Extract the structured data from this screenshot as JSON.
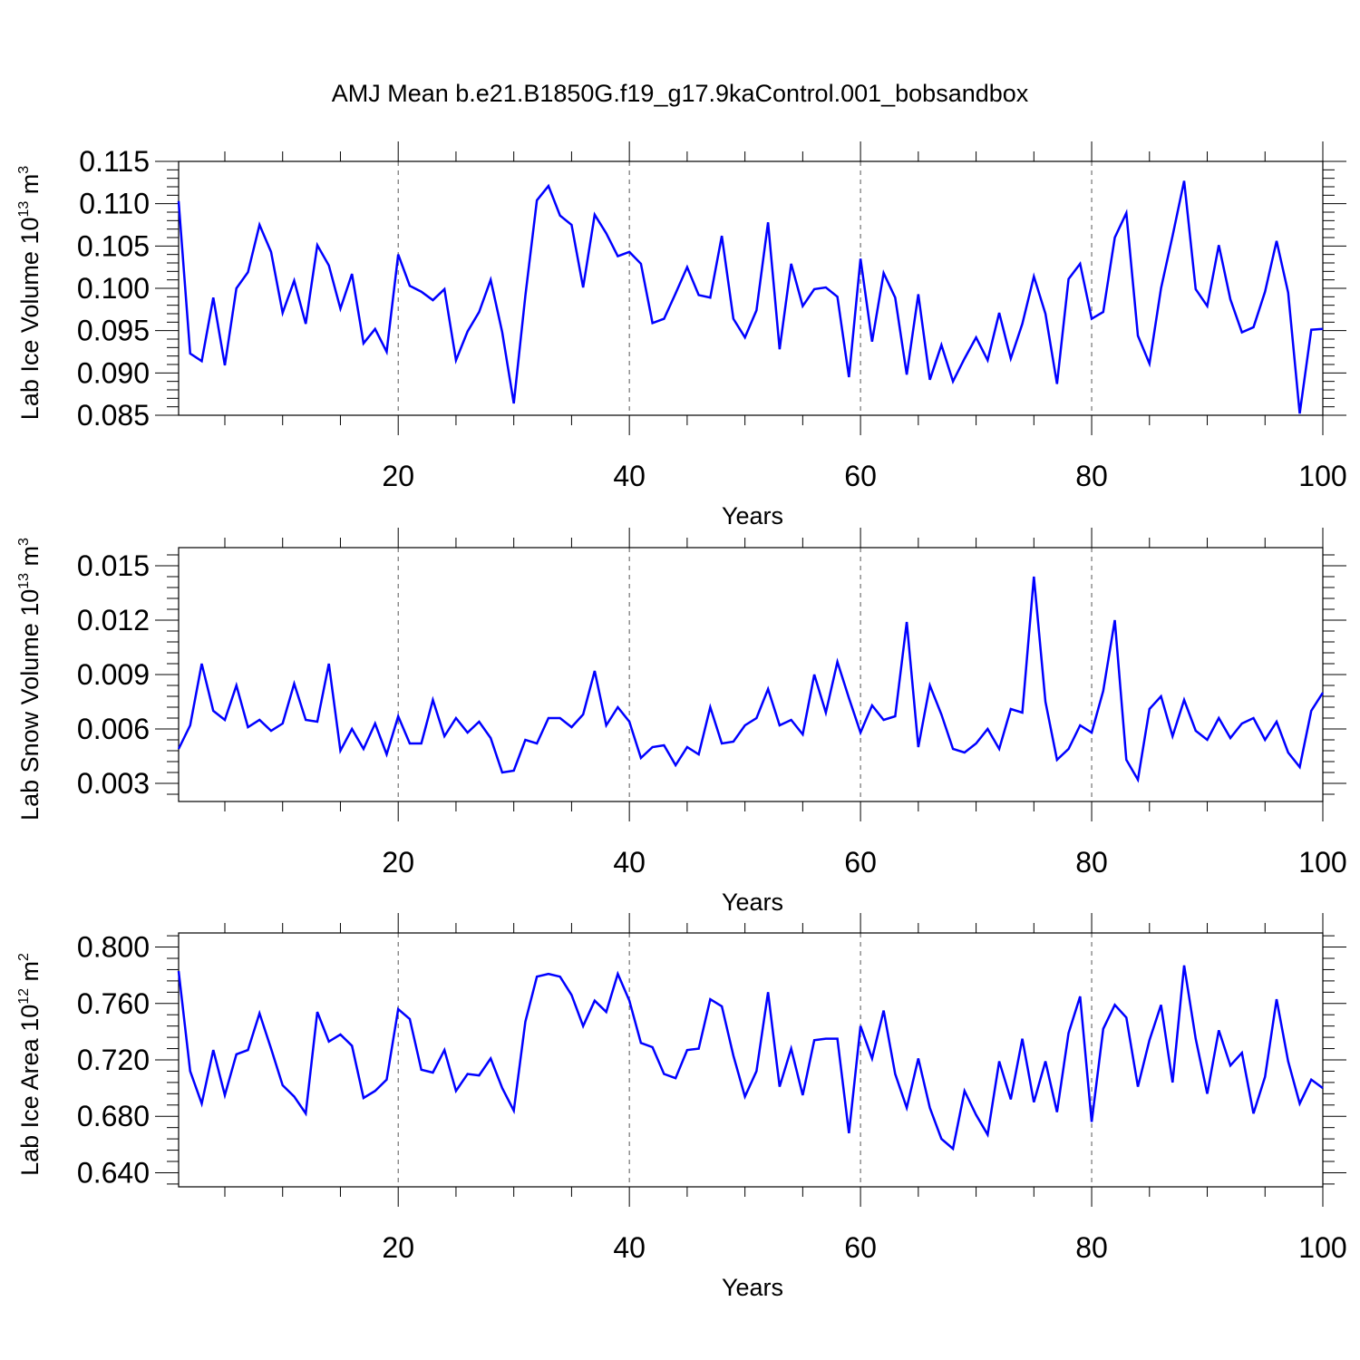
{
  "title": "AMJ Mean b.e21.B1850G.f19_g17.9kaControl.001_bobsandbox",
  "chart_data": [
    {
      "type": "line",
      "ylabel": {
        "main": "Lab Ice Volume 10",
        "exp": "13",
        "unit": " m",
        "unit_exp": "3"
      },
      "xlabel": "Years",
      "xlim": [
        1,
        100
      ],
      "ylim": [
        0.085,
        0.115
      ],
      "yticks": [
        0.085,
        0.09,
        0.095,
        0.1,
        0.105,
        0.11,
        0.115
      ],
      "yticklabels": [
        "0.085",
        "0.090",
        "0.095",
        "0.100",
        "0.105",
        "0.110",
        "0.115"
      ],
      "xticks": [
        20,
        40,
        60,
        80,
        100
      ],
      "xticklabels": [
        "20",
        "40",
        "60",
        "80",
        "100"
      ],
      "grid_x": [
        20,
        40,
        60,
        80
      ],
      "line_color": "#0000ff",
      "x": [
        1,
        2,
        3,
        4,
        5,
        6,
        7,
        8,
        9,
        10,
        11,
        12,
        13,
        14,
        15,
        16,
        17,
        18,
        19,
        20,
        21,
        22,
        23,
        24,
        25,
        26,
        27,
        28,
        29,
        30,
        31,
        32,
        33,
        34,
        35,
        36,
        37,
        38,
        39,
        40,
        41,
        42,
        43,
        44,
        45,
        46,
        47,
        48,
        49,
        50,
        51,
        52,
        53,
        54,
        55,
        56,
        57,
        58,
        59,
        60,
        61,
        62,
        63,
        64,
        65,
        66,
        67,
        68,
        69,
        70,
        71,
        72,
        73,
        74,
        75,
        76,
        77,
        78,
        79,
        80,
        81,
        82,
        83,
        84,
        85,
        86,
        87,
        88,
        89,
        90,
        91,
        92,
        93,
        94,
        95,
        96,
        97,
        98,
        99,
        100
      ],
      "values": [
        0.1103,
        0.0923,
        0.0914,
        0.0989,
        0.0909,
        0.1,
        0.1019,
        0.1075,
        0.1043,
        0.0971,
        0.1009,
        0.0958,
        0.1051,
        0.1027,
        0.0976,
        0.1017,
        0.0935,
        0.0952,
        0.0925,
        0.104,
        0.1003,
        0.0996,
        0.0986,
        0.0999,
        0.0915,
        0.0949,
        0.0972,
        0.101,
        0.0948,
        0.0864,
        0.0991,
        0.1104,
        0.1121,
        0.1086,
        0.1075,
        0.1001,
        0.1087,
        0.1065,
        0.1038,
        0.1043,
        0.1029,
        0.0959,
        0.0964,
        0.0994,
        0.1025,
        0.0992,
        0.0989,
        0.1062,
        0.0964,
        0.0942,
        0.0974,
        0.1078,
        0.0928,
        0.1029,
        0.0979,
        0.0999,
        0.1001,
        0.099,
        0.0895,
        0.1035,
        0.0937,
        0.1018,
        0.0989,
        0.0898,
        0.0993,
        0.0892,
        0.0933,
        0.089,
        0.0917,
        0.0942,
        0.0915,
        0.0971,
        0.0917,
        0.0958,
        0.1014,
        0.097,
        0.0887,
        0.1011,
        0.1029,
        0.0964,
        0.0972,
        0.106,
        0.1089,
        0.0944,
        0.0911,
        0.1,
        0.1062,
        0.1127,
        0.0999,
        0.0979,
        0.1051,
        0.0987,
        0.0948,
        0.0954,
        0.0996,
        0.1056,
        0.0995,
        0.0852,
        0.0951,
        0.0952
      ]
    },
    {
      "type": "line",
      "ylabel": {
        "main": "Lab Snow Volume 10",
        "exp": "13",
        "unit": " m",
        "unit_exp": "3"
      },
      "xlabel": "Years",
      "xlim": [
        1,
        100
      ],
      "ylim": [
        0.002,
        0.016
      ],
      "yticks": [
        0.003,
        0.006,
        0.009,
        0.012,
        0.015
      ],
      "yticklabels": [
        "0.003",
        "0.006",
        "0.009",
        "0.012",
        "0.015"
      ],
      "xticks": [
        20,
        40,
        60,
        80,
        100
      ],
      "xticklabels": [
        "20",
        "40",
        "60",
        "80",
        "100"
      ],
      "grid_x": [
        20,
        40,
        60,
        80
      ],
      "line_color": "#0000ff",
      "x": [
        1,
        2,
        3,
        4,
        5,
        6,
        7,
        8,
        9,
        10,
        11,
        12,
        13,
        14,
        15,
        16,
        17,
        18,
        19,
        20,
        21,
        22,
        23,
        24,
        25,
        26,
        27,
        28,
        29,
        30,
        31,
        32,
        33,
        34,
        35,
        36,
        37,
        38,
        39,
        40,
        41,
        42,
        43,
        44,
        45,
        46,
        47,
        48,
        49,
        50,
        51,
        52,
        53,
        54,
        55,
        56,
        57,
        58,
        59,
        60,
        61,
        62,
        63,
        64,
        65,
        66,
        67,
        68,
        69,
        70,
        71,
        72,
        73,
        74,
        75,
        76,
        77,
        78,
        79,
        80,
        81,
        82,
        83,
        84,
        85,
        86,
        87,
        88,
        89,
        90,
        91,
        92,
        93,
        94,
        95,
        96,
        97,
        98,
        99,
        100
      ],
      "values": [
        0.0049,
        0.0062,
        0.0096,
        0.007,
        0.0065,
        0.0084,
        0.0061,
        0.0065,
        0.0059,
        0.0063,
        0.0085,
        0.0065,
        0.0064,
        0.0096,
        0.0048,
        0.006,
        0.0049,
        0.0063,
        0.0046,
        0.0067,
        0.0052,
        0.0052,
        0.0076,
        0.0056,
        0.0066,
        0.0058,
        0.0064,
        0.0055,
        0.0036,
        0.0037,
        0.0054,
        0.0052,
        0.0066,
        0.0066,
        0.0061,
        0.0068,
        0.0092,
        0.0062,
        0.0072,
        0.0064,
        0.0044,
        0.005,
        0.0051,
        0.004,
        0.005,
        0.0046,
        0.0072,
        0.0052,
        0.0053,
        0.0062,
        0.0066,
        0.0082,
        0.0062,
        0.0065,
        0.0057,
        0.009,
        0.0069,
        0.0097,
        0.0077,
        0.0058,
        0.0073,
        0.0065,
        0.0067,
        0.0119,
        0.005,
        0.0084,
        0.0068,
        0.0049,
        0.0047,
        0.0052,
        0.006,
        0.0049,
        0.0071,
        0.0069,
        0.0144,
        0.0075,
        0.0043,
        0.0049,
        0.0062,
        0.0058,
        0.0081,
        0.012,
        0.0043,
        0.0032,
        0.0071,
        0.0078,
        0.0056,
        0.0076,
        0.0059,
        0.0054,
        0.0066,
        0.0055,
        0.0063,
        0.0066,
        0.0054,
        0.0064,
        0.0047,
        0.0039,
        0.007,
        0.008
      ]
    },
    {
      "type": "line",
      "ylabel": {
        "main": "Lab Ice Area 10",
        "exp": "12",
        "unit": " m",
        "unit_exp": "2"
      },
      "xlabel": "Years",
      "xlim": [
        1,
        100
      ],
      "ylim": [
        0.63,
        0.81
      ],
      "yticks": [
        0.64,
        0.68,
        0.72,
        0.76,
        0.8
      ],
      "yticklabels": [
        "0.640",
        "0.680",
        "0.720",
        "0.760",
        "0.800"
      ],
      "xticks": [
        20,
        40,
        60,
        80,
        100
      ],
      "xticklabels": [
        "20",
        "40",
        "60",
        "80",
        "100"
      ],
      "grid_x": [
        20,
        40,
        60,
        80
      ],
      "line_color": "#0000ff",
      "x": [
        1,
        2,
        3,
        4,
        5,
        6,
        7,
        8,
        9,
        10,
        11,
        12,
        13,
        14,
        15,
        16,
        17,
        18,
        19,
        20,
        21,
        22,
        23,
        24,
        25,
        26,
        27,
        28,
        29,
        30,
        31,
        32,
        33,
        34,
        35,
        36,
        37,
        38,
        39,
        40,
        41,
        42,
        43,
        44,
        45,
        46,
        47,
        48,
        49,
        50,
        51,
        52,
        53,
        54,
        55,
        56,
        57,
        58,
        59,
        60,
        61,
        62,
        63,
        64,
        65,
        66,
        67,
        68,
        69,
        70,
        71,
        72,
        73,
        74,
        75,
        76,
        77,
        78,
        79,
        80,
        81,
        82,
        83,
        84,
        85,
        86,
        87,
        88,
        89,
        90,
        91,
        92,
        93,
        94,
        95,
        96,
        97,
        98,
        99,
        100
      ],
      "values": [
        0.783,
        0.712,
        0.689,
        0.727,
        0.695,
        0.724,
        0.727,
        0.753,
        0.728,
        0.702,
        0.694,
        0.682,
        0.754,
        0.733,
        0.738,
        0.73,
        0.693,
        0.698,
        0.706,
        0.756,
        0.749,
        0.713,
        0.711,
        0.727,
        0.698,
        0.71,
        0.709,
        0.721,
        0.7,
        0.684,
        0.747,
        0.779,
        0.781,
        0.779,
        0.766,
        0.744,
        0.762,
        0.754,
        0.781,
        0.762,
        0.732,
        0.729,
        0.71,
        0.707,
        0.727,
        0.728,
        0.763,
        0.758,
        0.723,
        0.694,
        0.712,
        0.768,
        0.701,
        0.728,
        0.695,
        0.734,
        0.735,
        0.735,
        0.668,
        0.744,
        0.721,
        0.755,
        0.71,
        0.686,
        0.721,
        0.686,
        0.664,
        0.657,
        0.698,
        0.681,
        0.667,
        0.719,
        0.692,
        0.735,
        0.69,
        0.719,
        0.683,
        0.739,
        0.765,
        0.676,
        0.742,
        0.759,
        0.75,
        0.701,
        0.734,
        0.759,
        0.704,
        0.787,
        0.735,
        0.696,
        0.741,
        0.716,
        0.725,
        0.682,
        0.708,
        0.763,
        0.719,
        0.689,
        0.706,
        0.7
      ]
    }
  ]
}
